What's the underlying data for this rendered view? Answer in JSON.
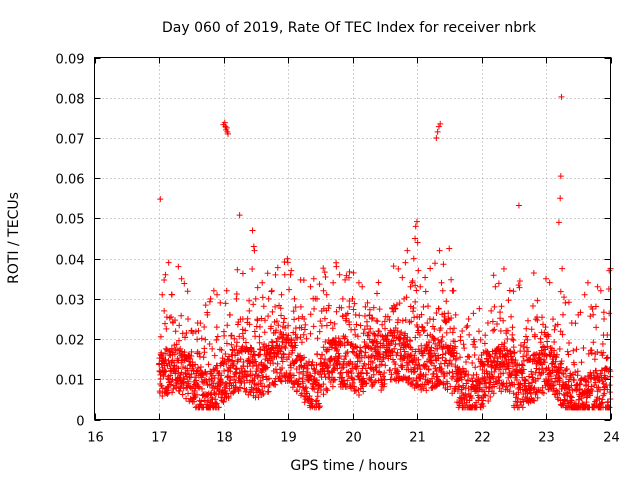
{
  "chart_data": {
    "type": "scatter",
    "title": "Day 060 of 2019, Rate Of TEC Index for receiver nbrk",
    "xlabel": "GPS time / hours",
    "ylabel": "ROTI / TECUs",
    "xlim": [
      16,
      24
    ],
    "ylim": [
      0,
      0.09
    ],
    "x_ticks": [
      "16",
      "17",
      "18",
      "19",
      "20",
      "21",
      "22",
      "23",
      "24"
    ],
    "y_ticks": [
      "0",
      "0.01",
      "0.02",
      "0.03",
      "0.04",
      "0.05",
      "0.06",
      "0.07",
      "0.08",
      "0.09"
    ],
    "grid": true,
    "marker": "+",
    "color": "#ff0000",
    "data_range_x": [
      17.0,
      24.0
    ],
    "series": [
      {
        "name": "ROTI",
        "points": [
          [
            17.02,
            0.0548
          ],
          [
            17.05,
            0.031
          ],
          [
            17.08,
            0.027
          ],
          [
            17.1,
            0.036
          ],
          [
            17.15,
            0.039
          ],
          [
            17.2,
            0.031
          ],
          [
            17.3,
            0.038
          ],
          [
            17.35,
            0.035
          ],
          [
            17.45,
            0.025
          ],
          [
            17.5,
            0.022
          ],
          [
            17.6,
            0.024
          ],
          [
            17.7,
            0.023
          ],
          [
            17.75,
            0.026
          ],
          [
            17.8,
            0.03
          ],
          [
            17.85,
            0.032
          ],
          [
            17.9,
            0.031
          ],
          [
            17.95,
            0.029
          ],
          [
            18.0,
            0.0733
          ],
          [
            18.02,
            0.0738
          ],
          [
            18.03,
            0.0728
          ],
          [
            18.04,
            0.072
          ],
          [
            18.05,
            0.0725
          ],
          [
            18.06,
            0.0715
          ],
          [
            18.07,
            0.071
          ],
          [
            18.05,
            0.032
          ],
          [
            18.1,
            0.026
          ],
          [
            18.2,
            0.03
          ],
          [
            18.25,
            0.0508
          ],
          [
            18.3,
            0.025
          ],
          [
            18.4,
            0.027
          ],
          [
            18.45,
            0.047
          ],
          [
            18.47,
            0.043
          ],
          [
            18.48,
            0.042
          ],
          [
            18.5,
            0.03
          ],
          [
            18.6,
            0.034
          ],
          [
            18.7,
            0.03
          ],
          [
            18.75,
            0.032
          ],
          [
            18.8,
            0.028
          ],
          [
            18.9,
            0.031
          ],
          [
            18.95,
            0.036
          ],
          [
            19.05,
            0.037
          ],
          [
            19.1,
            0.03
          ],
          [
            19.2,
            0.028
          ],
          [
            19.25,
            0.025
          ],
          [
            19.35,
            0.033
          ],
          [
            19.4,
            0.035
          ],
          [
            19.45,
            0.03
          ],
          [
            19.55,
            0.032
          ],
          [
            19.6,
            0.031
          ],
          [
            19.7,
            0.034
          ],
          [
            19.75,
            0.038
          ],
          [
            19.8,
            0.036
          ],
          [
            19.85,
            0.03
          ],
          [
            19.9,
            0.026
          ],
          [
            19.95,
            0.028
          ],
          [
            20.0,
            0.03
          ],
          [
            20.05,
            0.026
          ],
          [
            20.1,
            0.034
          ],
          [
            20.15,
            0.033
          ],
          [
            20.2,
            0.028
          ],
          [
            20.3,
            0.025
          ],
          [
            20.4,
            0.022
          ],
          [
            20.5,
            0.02
          ],
          [
            20.6,
            0.019
          ],
          [
            20.7,
            0.022
          ],
          [
            20.8,
            0.03
          ],
          [
            20.82,
            0.039
          ],
          [
            20.85,
            0.042
          ],
          [
            20.9,
            0.033
          ],
          [
            20.95,
            0.04
          ],
          [
            20.97,
            0.045
          ],
          [
            20.98,
            0.048
          ],
          [
            21.0,
            0.0492
          ],
          [
            21.01,
            0.044
          ],
          [
            21.02,
            0.037
          ],
          [
            21.05,
            0.033
          ],
          [
            21.1,
            0.028
          ],
          [
            21.2,
            0.025
          ],
          [
            21.3,
            0.07
          ],
          [
            21.32,
            0.0715
          ],
          [
            21.34,
            0.0728
          ],
          [
            21.36,
            0.0735
          ],
          [
            21.35,
            0.042
          ],
          [
            21.38,
            0.034
          ],
          [
            21.4,
            0.032
          ],
          [
            21.5,
            0.0425
          ],
          [
            21.55,
            0.032
          ],
          [
            21.6,
            0.026
          ],
          [
            21.7,
            0.022
          ],
          [
            21.8,
            0.025
          ],
          [
            21.9,
            0.018
          ],
          [
            22.0,
            0.016
          ],
          [
            22.1,
            0.024
          ],
          [
            22.15,
            0.027
          ],
          [
            22.2,
            0.028
          ],
          [
            22.3,
            0.022
          ],
          [
            22.4,
            0.02
          ],
          [
            22.5,
            0.018
          ],
          [
            22.58,
            0.0532
          ],
          [
            22.6,
            0.017
          ],
          [
            22.7,
            0.016
          ],
          [
            22.8,
            0.015
          ],
          [
            22.9,
            0.016
          ],
          [
            23.0,
            0.035
          ],
          [
            23.1,
            0.015
          ],
          [
            23.2,
            0.049
          ],
          [
            23.22,
            0.055
          ],
          [
            23.23,
            0.0605
          ],
          [
            23.24,
            0.0802
          ],
          [
            23.25,
            0.0375
          ],
          [
            23.3,
            0.029
          ],
          [
            23.4,
            0.024
          ],
          [
            23.5,
            0.026
          ],
          [
            23.6,
            0.031
          ],
          [
            23.65,
            0.034
          ],
          [
            23.7,
            0.028
          ],
          [
            23.8,
            0.033
          ],
          [
            23.85,
            0.032
          ],
          [
            23.9,
            0.025
          ],
          [
            23.95,
            0.021
          ],
          [
            23.98,
            0.037
          ],
          [
            24.0,
            0.0375
          ]
        ]
      }
    ]
  }
}
